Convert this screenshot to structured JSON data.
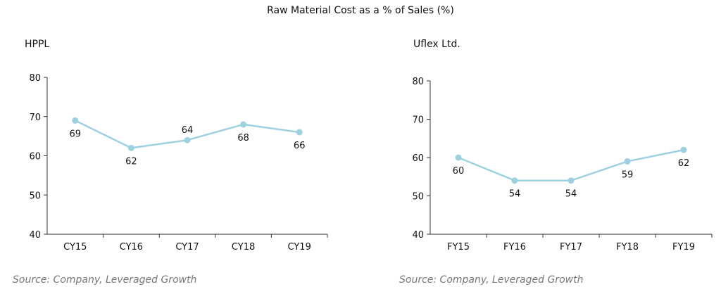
{
  "title": "Raw Material Cost as a  % of Sales  (%)",
  "series_color": "#9dd1e0",
  "chart_data": [
    {
      "type": "line",
      "title": "HPPL",
      "categories": [
        "CY15",
        "CY16",
        "CY17",
        "CY18",
        "CY19"
      ],
      "values": [
        69,
        62,
        64,
        68,
        66
      ],
      "data_labels": [
        "69",
        "62",
        "64",
        "68",
        "66"
      ],
      "ylim": [
        40,
        80
      ],
      "yticks": [
        "40",
        "50",
        "60",
        "70",
        "80"
      ],
      "label_positions": [
        "below",
        "below",
        "above",
        "below",
        "below"
      ],
      "grid": false,
      "source": "Source: Company, Leveraged Growth"
    },
    {
      "type": "line",
      "title": "Uflex Ltd.",
      "categories": [
        "FY15",
        "FY16",
        "FY17",
        "FY18",
        "FY19"
      ],
      "values": [
        60,
        54,
        54,
        59,
        62
      ],
      "data_labels": [
        "60",
        "54",
        "54",
        "59",
        "62"
      ],
      "ylim": [
        40,
        80
      ],
      "yticks": [
        "40",
        "50",
        "60",
        "70",
        "80"
      ],
      "label_positions": [
        "below",
        "below",
        "below",
        "below",
        "below"
      ],
      "grid": false,
      "source": "Source: Company, Leveraged Growth"
    }
  ]
}
